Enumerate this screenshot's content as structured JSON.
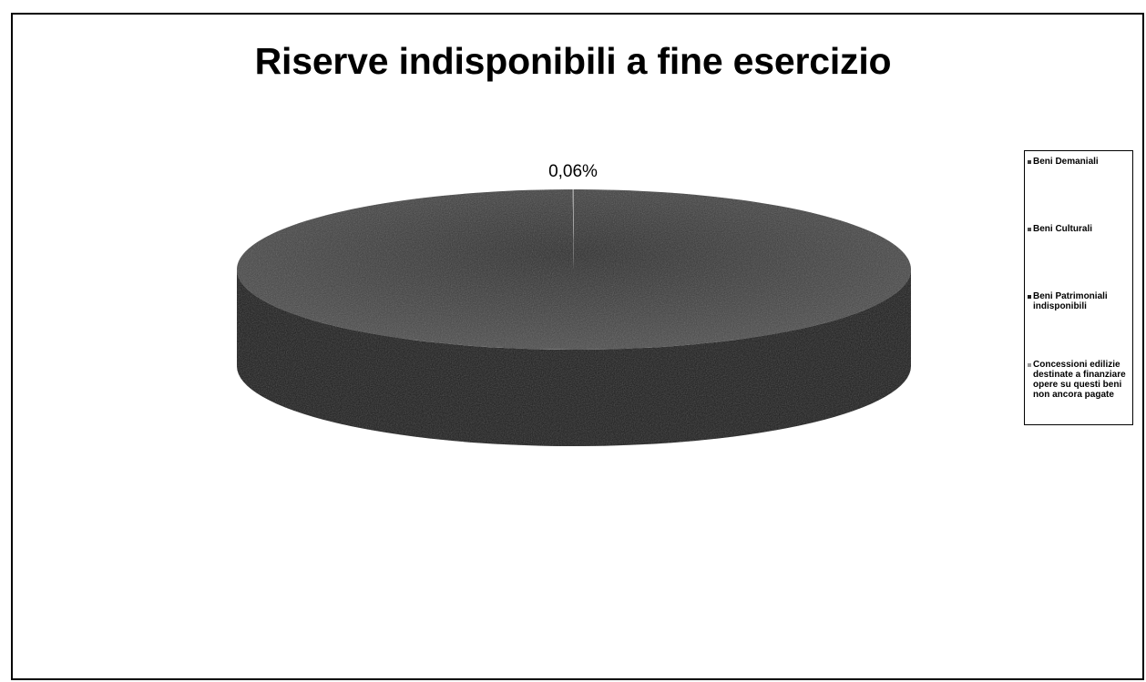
{
  "chart_data": {
    "type": "pie",
    "title": "Riserve indisponibili a fine esercizio",
    "categories": [
      "Beni Demaniali",
      "Beni Culturali",
      "Beni Patrimoniali indisponibili",
      "Concessioni edilizie destinate a finanziare opere su questi beni non ancora pagate"
    ],
    "values": [
      0,
      0,
      99.94,
      0.06
    ],
    "data_labels": [
      "",
      "",
      "",
      "0,06%"
    ],
    "legend_placement": "right",
    "colors": [
      "#3a3a3a",
      "#4a4a4a",
      "#1c1c1c",
      "#9a9a9a"
    ]
  }
}
